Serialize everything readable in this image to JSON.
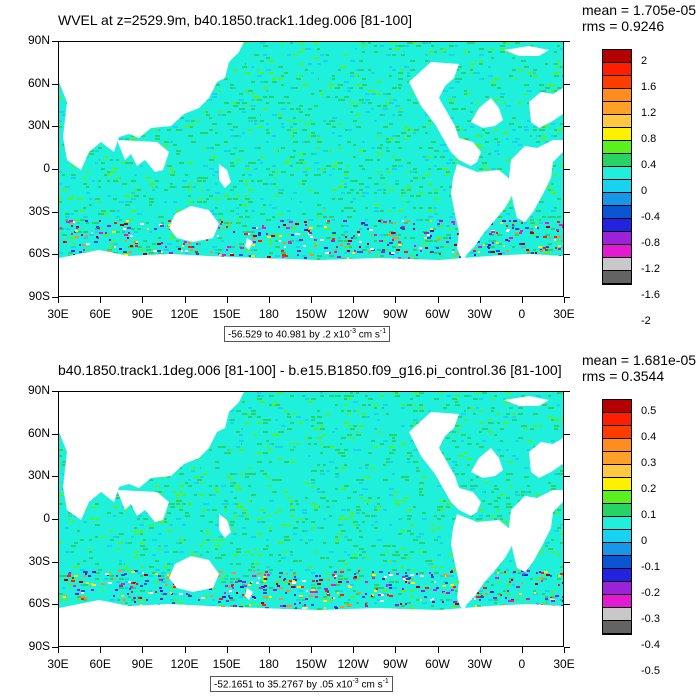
{
  "colors": {
    "land": "#ffffff",
    "levels": [
      "#636363",
      "#c8c8c8",
      "#e31ad2",
      "#9b22d9",
      "#2222e0",
      "#0a55d4",
      "#1896e8",
      "#18d2f0",
      "#1ef0dc",
      "#28d264",
      "#5af01e",
      "#fff000",
      "#ffc840",
      "#ffa028",
      "#ff8c1e",
      "#ff3c00",
      "#ff1e00",
      "#b40000"
    ]
  },
  "panels": [
    {
      "title": "WVEL at z=2529.9m, b40.1850.track1.1deg.006 [81-100]",
      "mean": "mean = 1.705e-05",
      "rms": "rms = 0.9246",
      "colorbar_labels": [
        "2",
        "1.6",
        "1.2",
        "0.8",
        "0.4",
        "0",
        "-0.4",
        "-0.8",
        "-1.2",
        "-1.6",
        "-2"
      ],
      "range_text": "-56.529 to 40.981 by .2 x10",
      "range_exp": "-3",
      "range_unit": "cm s",
      "range_unit_exp": "-1"
    },
    {
      "title": "b40.1850.track1.1deg.006 [81-100] - b.e15.B1850.f09_g16.pi_control.36 [81-100]",
      "mean": "mean = 1.681e-05",
      "rms": "rms = 0.3544",
      "colorbar_labels": [
        "0.5",
        "0.4",
        "0.3",
        "0.2",
        "0.1",
        "0",
        "-0.1",
        "-0.2",
        "-0.3",
        "-0.4",
        "-0.5"
      ],
      "range_text": "-52.1651 to 35.2767 by .05 x10",
      "range_exp": "-3",
      "range_unit": "cm s",
      "range_unit_exp": "-1"
    }
  ],
  "axes": {
    "lat_labels": [
      "90N",
      "60N",
      "30N",
      "0",
      "30S",
      "60S",
      "90S"
    ],
    "lon_labels": [
      "30E",
      "60E",
      "90E",
      "120E",
      "150E",
      "180",
      "150W",
      "120W",
      "90W",
      "60W",
      "30W",
      "0",
      "30E"
    ]
  }
}
